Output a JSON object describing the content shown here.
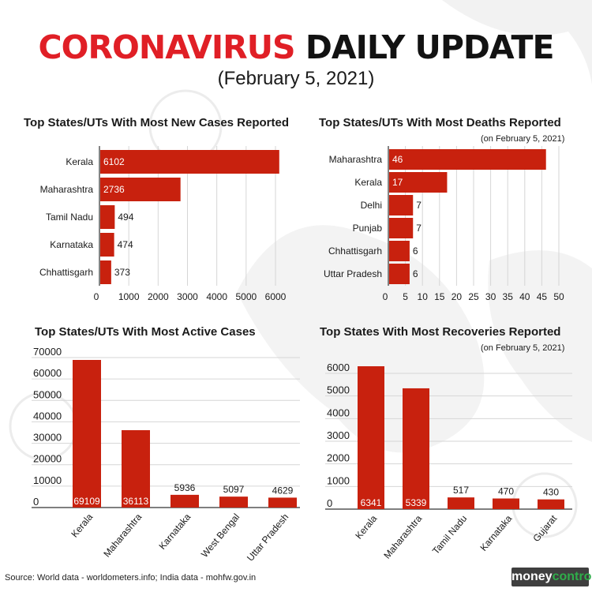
{
  "header": {
    "title_red": "CORONAVIRUS",
    "title_black": "DAILY UPDATE",
    "date": "(February 5, 2021)"
  },
  "colors": {
    "bar": "#c8210e",
    "title_red": "#e01f26",
    "axis": "#333333",
    "background_shapes": "#f0f0f0"
  },
  "footer": {
    "source": "Source: World data - worldometers.info; India data - mohfw.gov.in",
    "logo_left": "money",
    "logo_right": "control"
  },
  "chart_data": [
    {
      "id": "new_cases",
      "type": "bar",
      "orientation": "horizontal",
      "title": "Top States/UTs With Most New Cases Reported",
      "note": "",
      "categories": [
        "Kerala",
        "Maharashtra",
        "Tamil Nadu",
        "Karnataka",
        "Chhattisgarh"
      ],
      "values": [
        6102,
        2736,
        494,
        474,
        373
      ],
      "value_labels": [
        "6102",
        "2736",
        "494",
        "474",
        "373"
      ],
      "xlim": [
        0,
        6000
      ],
      "ticks": [
        0,
        1000,
        2000,
        3000,
        4000,
        5000,
        6000
      ],
      "tick_labels": [
        "0",
        "1000",
        "2000",
        "3000",
        "4000",
        "5000",
        "6000"
      ],
      "grid": true
    },
    {
      "id": "deaths",
      "type": "bar",
      "orientation": "horizontal",
      "title": "Top States/UTs With Most Deaths Reported",
      "note": "(on February 5, 2021)",
      "categories": [
        "Maharashtra",
        "Kerala",
        "Delhi",
        "Punjab",
        "Chhattisgarh",
        "Uttar Pradesh"
      ],
      "values": [
        46,
        17,
        7,
        7,
        6,
        6
      ],
      "value_labels": [
        "46",
        "17",
        "7",
        "7",
        "6",
        "6"
      ],
      "xlim": [
        0,
        50
      ],
      "ticks": [
        0,
        5,
        10,
        15,
        20,
        25,
        30,
        35,
        40,
        45,
        50
      ],
      "tick_labels": [
        "0",
        "5",
        "10",
        "15",
        "20",
        "25",
        "30",
        "35",
        "40",
        "45",
        "50"
      ],
      "grid": true
    },
    {
      "id": "active_cases",
      "type": "bar",
      "orientation": "vertical",
      "title": "Top States/UTs With Most Active Cases",
      "note": "",
      "categories": [
        "Kerala",
        "Maharashtra",
        "Karnataka",
        "West Bengal",
        "Uttar Pradesh"
      ],
      "values": [
        69109,
        36113,
        5936,
        5097,
        4629
      ],
      "value_labels": [
        "69109",
        "36113",
        "5936",
        "5097",
        "4629"
      ],
      "ylim": [
        0,
        70000
      ],
      "ticks": [
        0,
        10000,
        20000,
        30000,
        40000,
        50000,
        60000,
        70000
      ],
      "tick_labels": [
        "0",
        "10000",
        "20000",
        "30000",
        "40000",
        "50000",
        "60000",
        "70000"
      ],
      "grid": true
    },
    {
      "id": "recoveries",
      "type": "bar",
      "orientation": "vertical",
      "title": "Top States With Most Recoveries Reported",
      "note": "(on February 5, 2021)",
      "categories": [
        "Kerala",
        "Maharashtra",
        "Tamil Nadu",
        "Karnataka",
        "Gujarat"
      ],
      "values": [
        6341,
        5339,
        517,
        470,
        430
      ],
      "value_labels": [
        "6341",
        "5339",
        "517",
        "470",
        "430"
      ],
      "ylim": [
        0,
        6000
      ],
      "ticks": [
        0,
        1000,
        2000,
        3000,
        4000,
        5000,
        6000
      ],
      "tick_labels": [
        "0",
        "1000",
        "2000",
        "3000",
        "4000",
        "5000",
        "6000"
      ],
      "grid": true
    }
  ]
}
